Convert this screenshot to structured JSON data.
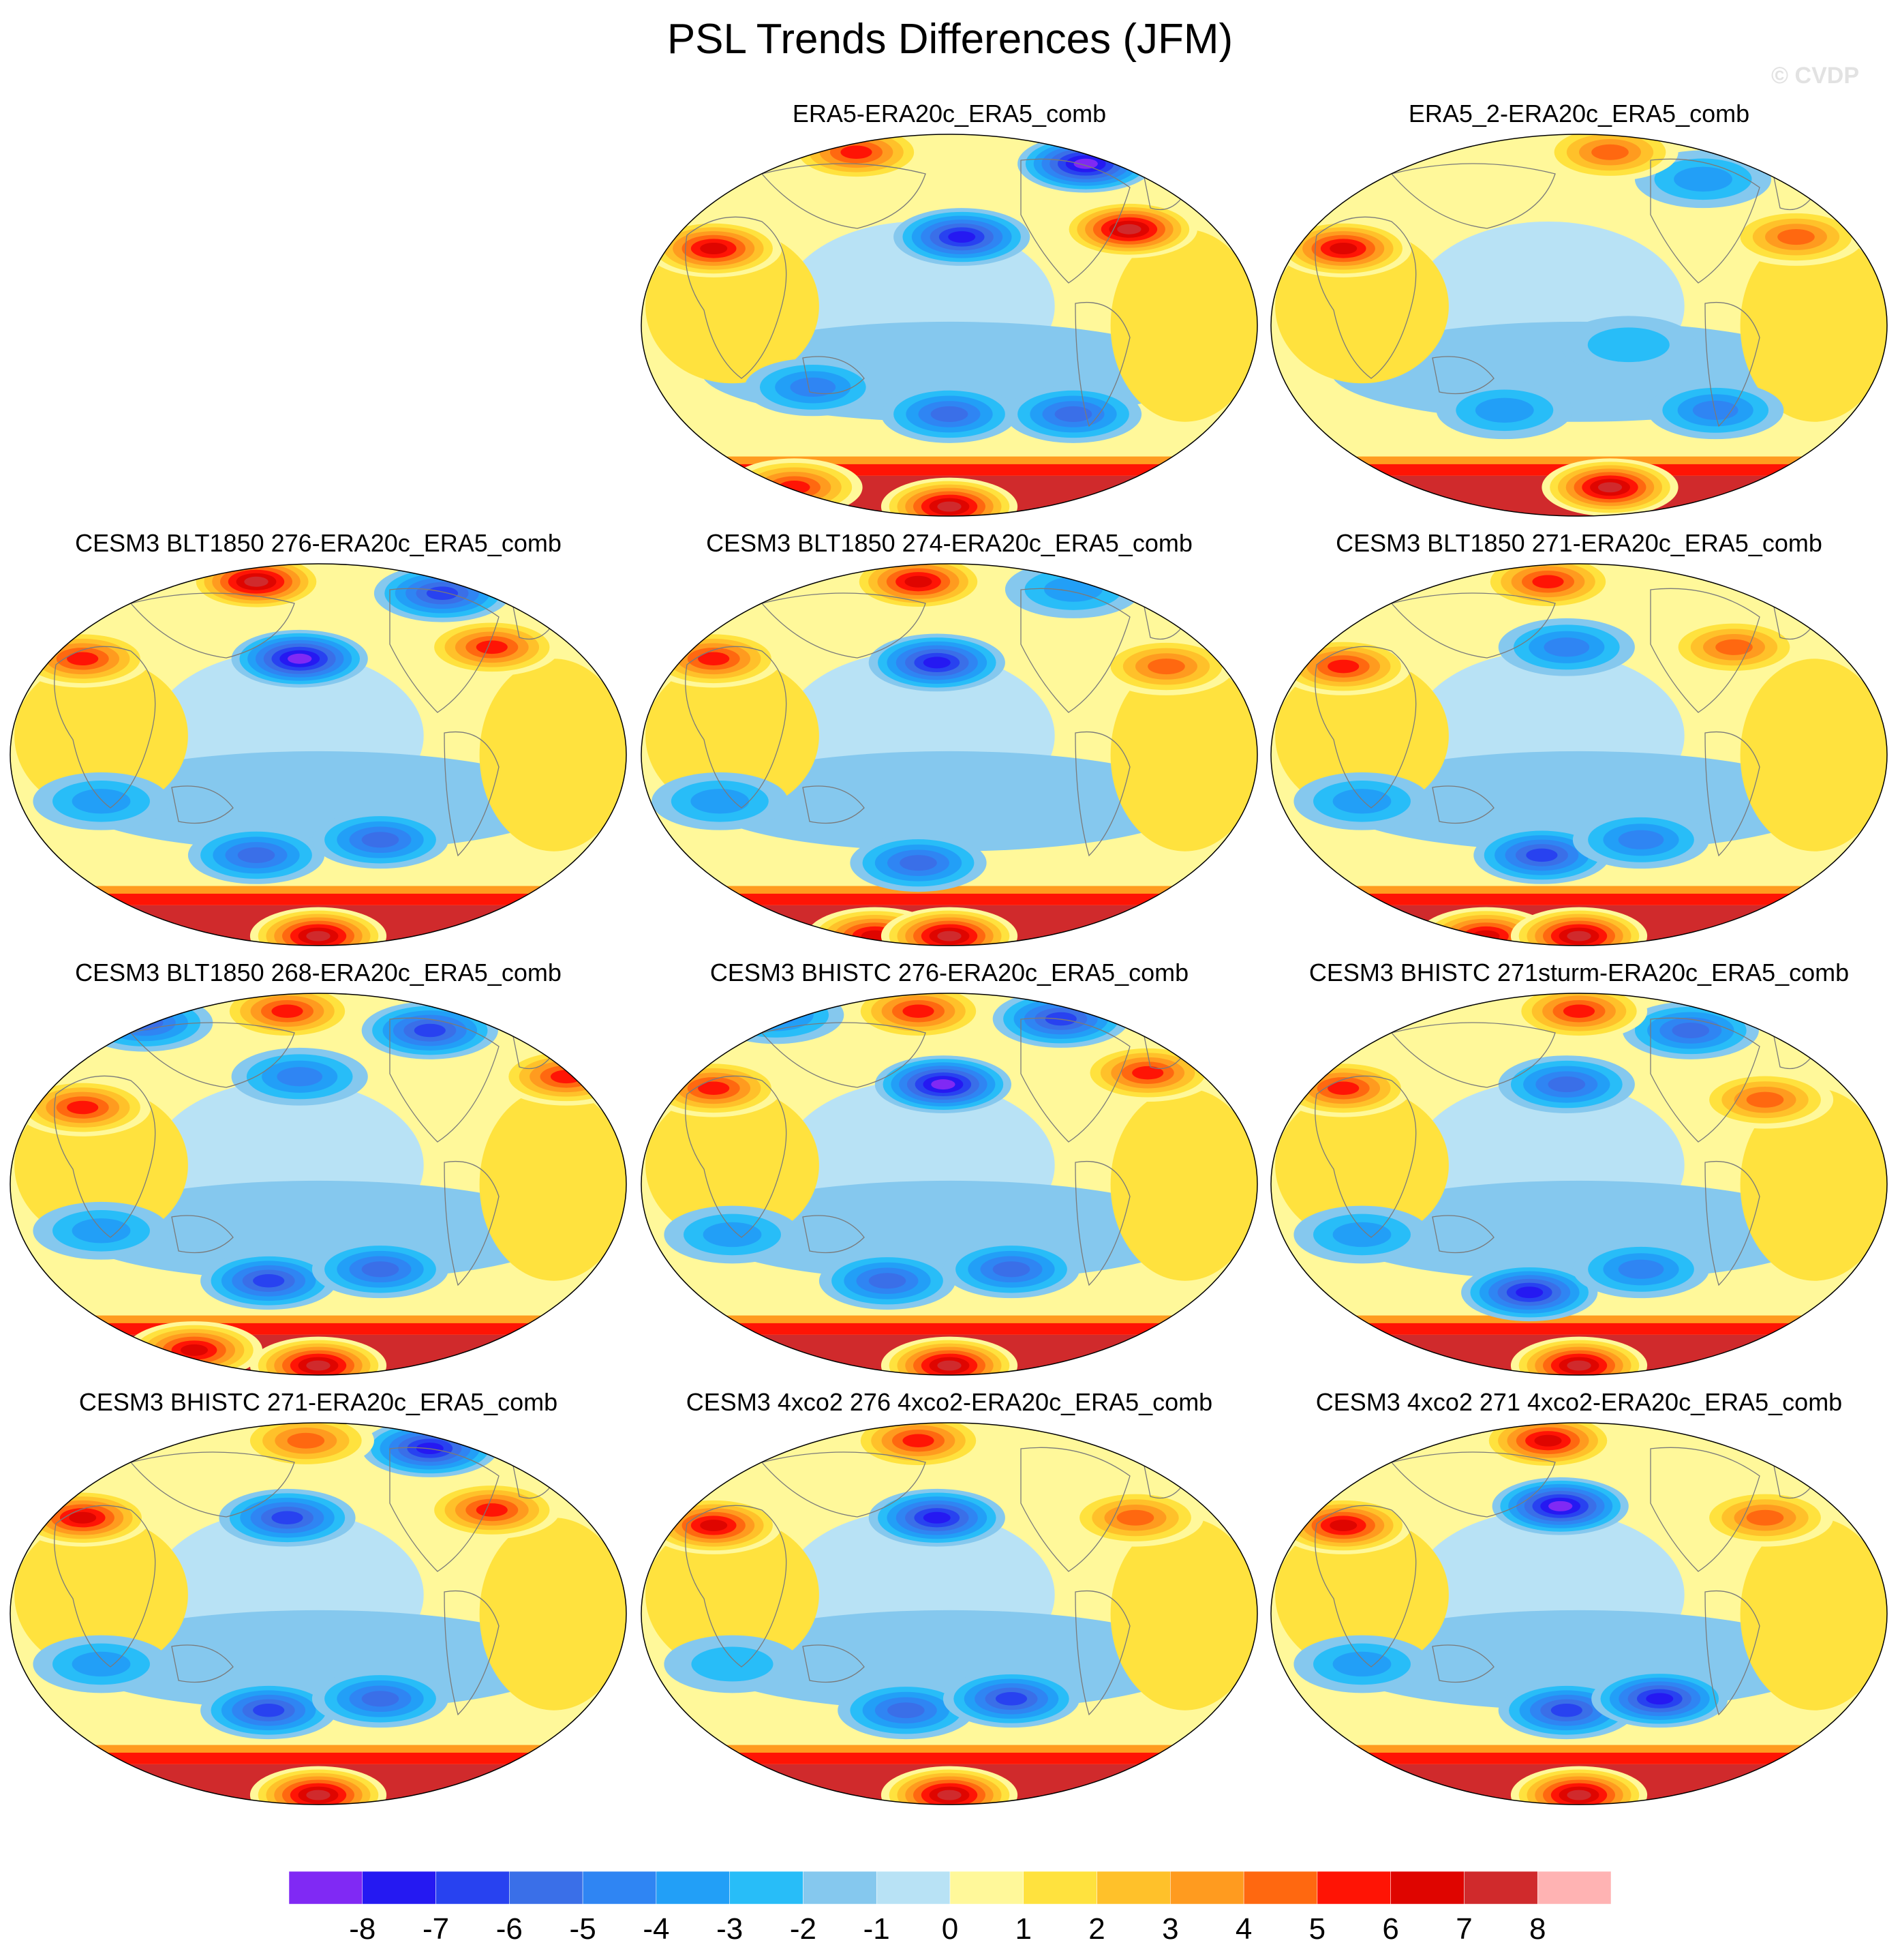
{
  "title": "PSL Trends Differences (JFM)",
  "watermark": "© CVDP",
  "panels": [
    {
      "title": "ERA5-ERA20c_ERA5_comb",
      "lows": [
        [
          0.52,
          0.27,
          -7
        ],
        [
          0.72,
          0.08,
          -8
        ],
        [
          0.5,
          0.73,
          -5
        ],
        [
          0.28,
          0.66,
          -4
        ],
        [
          0.7,
          0.73,
          -5
        ]
      ],
      "highs": [
        [
          0.12,
          0.3,
          7
        ],
        [
          0.35,
          0.05,
          6
        ],
        [
          0.79,
          0.25,
          8
        ],
        [
          0.5,
          0.97,
          8
        ],
        [
          0.25,
          0.92,
          6
        ]
      ]
    },
    {
      "title": "ERA5_2-ERA20c_ERA5_comb",
      "lows": [
        [
          0.7,
          0.12,
          -3
        ],
        [
          0.58,
          0.55,
          -2
        ],
        [
          0.38,
          0.72,
          -3
        ],
        [
          0.72,
          0.72,
          -4
        ]
      ],
      "highs": [
        [
          0.12,
          0.3,
          7
        ],
        [
          0.55,
          0.05,
          5
        ],
        [
          0.85,
          0.27,
          5
        ],
        [
          0.55,
          0.92,
          8
        ]
      ]
    },
    {
      "title": "CESM3 BLT1850 276-ERA20c_ERA5_comb",
      "lows": [
        [
          0.47,
          0.25,
          -8
        ],
        [
          0.7,
          0.08,
          -6
        ],
        [
          0.4,
          0.76,
          -5
        ],
        [
          0.6,
          0.72,
          -5
        ],
        [
          0.15,
          0.62,
          -3
        ]
      ],
      "highs": [
        [
          0.12,
          0.25,
          6
        ],
        [
          0.4,
          0.05,
          8
        ],
        [
          0.78,
          0.22,
          6
        ],
        [
          0.5,
          0.97,
          8
        ]
      ]
    },
    {
      "title": "CESM3 BLT1850 274-ERA20c_ERA5_comb",
      "lows": [
        [
          0.48,
          0.26,
          -7
        ],
        [
          0.7,
          0.07,
          -3
        ],
        [
          0.45,
          0.78,
          -5
        ],
        [
          0.13,
          0.62,
          -3
        ]
      ],
      "highs": [
        [
          0.12,
          0.25,
          6
        ],
        [
          0.45,
          0.05,
          7
        ],
        [
          0.85,
          0.27,
          5
        ],
        [
          0.38,
          0.97,
          7
        ],
        [
          0.5,
          0.97,
          8
        ]
      ]
    },
    {
      "title": "CESM3 BLT1850 271-ERA20c_ERA5_comb",
      "lows": [
        [
          0.48,
          0.22,
          -4
        ],
        [
          0.44,
          0.76,
          -6
        ],
        [
          0.6,
          0.72,
          -4
        ],
        [
          0.15,
          0.62,
          -3
        ]
      ],
      "highs": [
        [
          0.12,
          0.27,
          6
        ],
        [
          0.45,
          0.05,
          6
        ],
        [
          0.75,
          0.22,
          5
        ],
        [
          0.35,
          0.97,
          7
        ],
        [
          0.5,
          0.97,
          8
        ]
      ]
    },
    {
      "title": "CESM3 BLT1850 268-ERA20c_ERA5_comb",
      "lows": [
        [
          0.22,
          0.08,
          -5
        ],
        [
          0.47,
          0.22,
          -4
        ],
        [
          0.68,
          0.1,
          -6
        ],
        [
          0.42,
          0.75,
          -6
        ],
        [
          0.6,
          0.72,
          -5
        ],
        [
          0.15,
          0.62,
          -3
        ]
      ],
      "highs": [
        [
          0.12,
          0.3,
          6
        ],
        [
          0.45,
          0.05,
          6
        ],
        [
          0.9,
          0.22,
          6
        ],
        [
          0.5,
          0.97,
          8
        ],
        [
          0.3,
          0.93,
          7
        ]
      ]
    },
    {
      "title": "CESM3 BHISTC 276-ERA20c_ERA5_comb",
      "lows": [
        [
          0.49,
          0.24,
          -8
        ],
        [
          0.68,
          0.07,
          -6
        ],
        [
          0.22,
          0.06,
          -4
        ],
        [
          0.4,
          0.75,
          -5
        ],
        [
          0.6,
          0.72,
          -5
        ],
        [
          0.15,
          0.63,
          -3
        ]
      ],
      "highs": [
        [
          0.12,
          0.25,
          6
        ],
        [
          0.45,
          0.05,
          6
        ],
        [
          0.82,
          0.21,
          6
        ],
        [
          0.5,
          0.97,
          8
        ]
      ]
    },
    {
      "title": "CESM3 BHISTC 271sturm-ERA20c_ERA5_comb",
      "lows": [
        [
          0.48,
          0.24,
          -5
        ],
        [
          0.68,
          0.1,
          -5
        ],
        [
          0.42,
          0.78,
          -7
        ],
        [
          0.6,
          0.72,
          -4
        ],
        [
          0.15,
          0.63,
          -3
        ]
      ],
      "highs": [
        [
          0.12,
          0.25,
          6
        ],
        [
          0.5,
          0.05,
          6
        ],
        [
          0.8,
          0.28,
          5
        ],
        [
          0.5,
          0.97,
          8
        ]
      ]
    },
    {
      "title": "CESM3 BHISTC 271-ERA20c_ERA5_comb",
      "lows": [
        [
          0.45,
          0.25,
          -6
        ],
        [
          0.68,
          0.07,
          -7
        ],
        [
          0.42,
          0.75,
          -6
        ],
        [
          0.6,
          0.72,
          -5
        ],
        [
          0.15,
          0.63,
          -3
        ]
      ],
      "highs": [
        [
          0.12,
          0.25,
          7
        ],
        [
          0.48,
          0.05,
          5
        ],
        [
          0.78,
          0.23,
          6
        ],
        [
          0.5,
          0.97,
          8
        ]
      ]
    },
    {
      "title": "CESM3 4xco2 276 4xco2-ERA20c_ERA5_comb",
      "lows": [
        [
          0.48,
          0.25,
          -7
        ],
        [
          0.43,
          0.75,
          -5
        ],
        [
          0.6,
          0.72,
          -6
        ],
        [
          0.15,
          0.63,
          -2
        ]
      ],
      "highs": [
        [
          0.12,
          0.27,
          7
        ],
        [
          0.45,
          0.05,
          6
        ],
        [
          0.8,
          0.25,
          5
        ],
        [
          0.5,
          0.97,
          8
        ]
      ]
    },
    {
      "title": "CESM3 4xco2 271 4xco2-ERA20c_ERA5_comb",
      "lows": [
        [
          0.47,
          0.22,
          -8
        ],
        [
          0.48,
          0.75,
          -6
        ],
        [
          0.63,
          0.72,
          -7
        ],
        [
          0.15,
          0.63,
          -3
        ]
      ],
      "highs": [
        [
          0.12,
          0.27,
          7
        ],
        [
          0.45,
          0.05,
          7
        ],
        [
          0.8,
          0.25,
          5
        ],
        [
          0.5,
          0.97,
          8
        ]
      ]
    }
  ],
  "colorbar": {
    "labels": [
      "-8",
      "-7",
      "-6",
      "-5",
      "-4",
      "-3",
      "-2",
      "-1",
      "0",
      "1",
      "2",
      "3",
      "4",
      "5",
      "6",
      "7",
      "8"
    ],
    "colors": [
      "#8029f4",
      "#2519f2",
      "#2842f0",
      "#3a6fe8",
      "#2f85f3",
      "#229ff7",
      "#28bdf8",
      "#85c8ee",
      "#b8e2f5",
      "#fff89a",
      "#ffe23e",
      "#ffc12a",
      "#ff9b1f",
      "#ff6810",
      "#ff1405",
      "#df0500",
      "#d02a2c",
      "#ffb3b3"
    ],
    "bins": [
      -8.5,
      -7.5,
      -6.5,
      -5.5,
      -4.5,
      -3.5,
      -2.5,
      -1.5,
      -0.5,
      0.5,
      1.5,
      2.5,
      3.5,
      4.5,
      5.5,
      6.5,
      7.5,
      8.5
    ]
  }
}
